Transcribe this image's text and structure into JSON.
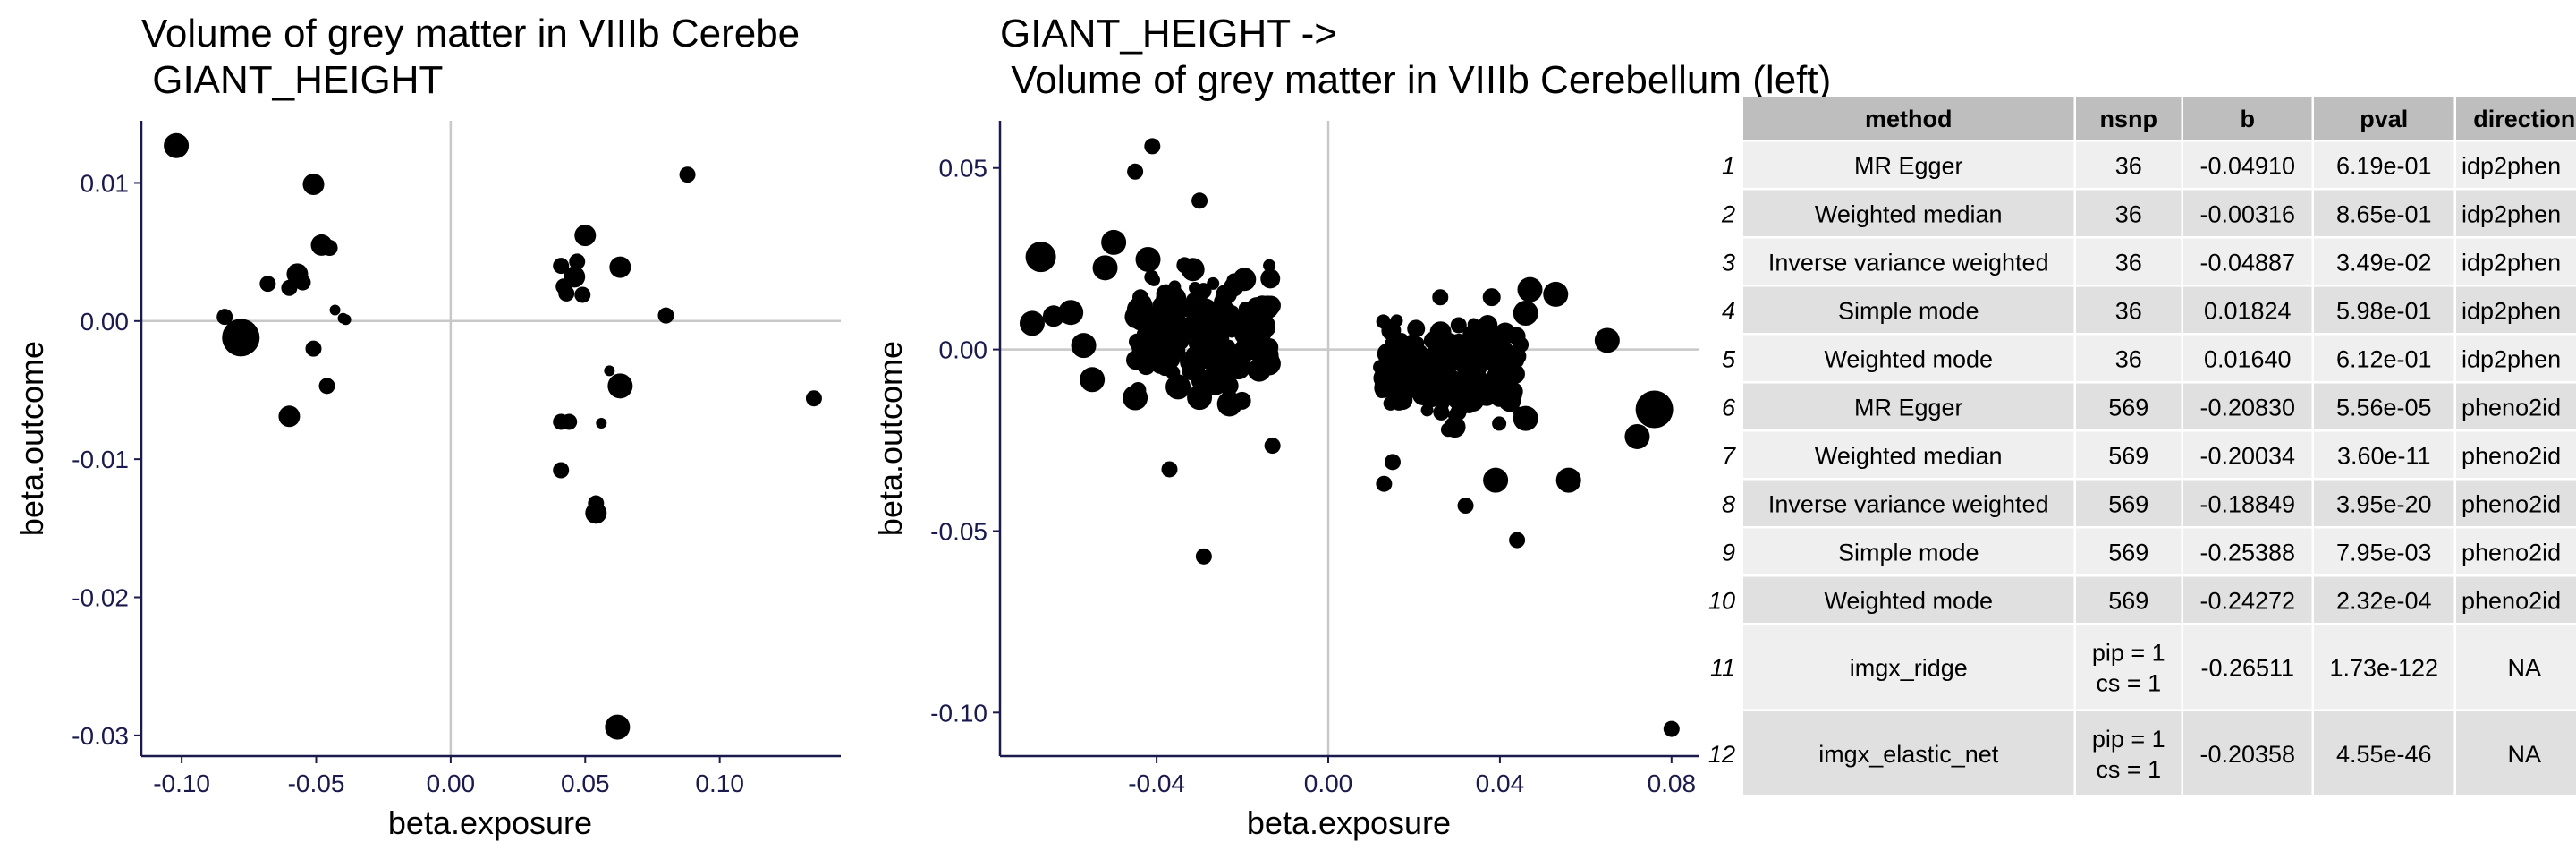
{
  "chart_data": [
    {
      "type": "scatter",
      "title": "Volume of grey matter in VIIIb Cerebe",
      "subtitle": " GIANT_HEIGHT",
      "xlabel": "beta.exposure",
      "ylabel": "beta.outcome",
      "xlim": [
        -0.115,
        0.145
      ],
      "ylim": [
        -0.0315,
        0.0145
      ],
      "xticks": [
        "-0.10",
        "-0.05",
        "0.00",
        "0.05",
        "0.10"
      ],
      "yticks": [
        "0.01",
        "0.00",
        "-0.01",
        "-0.02",
        "-0.03"
      ],
      "reference_lines": {
        "x": 0,
        "y": 0
      },
      "points": [
        {
          "x": -0.102,
          "y": 0.0127,
          "w": 3
        },
        {
          "x": -0.084,
          "y": 0.0003,
          "w": 1
        },
        {
          "x": -0.078,
          "y": -0.0012,
          "w": 5
        },
        {
          "x": -0.068,
          "y": 0.0027,
          "w": 1
        },
        {
          "x": -0.06,
          "y": 0.0024,
          "w": 1
        },
        {
          "x": -0.06,
          "y": -0.0069,
          "w": 2
        },
        {
          "x": -0.057,
          "y": 0.0034,
          "w": 2
        },
        {
          "x": -0.055,
          "y": 0.0028,
          "w": 1
        },
        {
          "x": -0.051,
          "y": 0.0099,
          "w": 2
        },
        {
          "x": -0.051,
          "y": -0.002,
          "w": 1
        },
        {
          "x": -0.048,
          "y": 0.0055,
          "w": 2
        },
        {
          "x": -0.045,
          "y": 0.0053,
          "w": 1
        },
        {
          "x": -0.046,
          "y": -0.0047,
          "w": 1
        },
        {
          "x": -0.043,
          "y": 0.0008,
          "w": 0
        },
        {
          "x": -0.04,
          "y": 0.0002,
          "w": 0
        },
        {
          "x": 0.041,
          "y": 0.004,
          "w": 1
        },
        {
          "x": 0.042,
          "y": 0.0025,
          "w": 1
        },
        {
          "x": 0.043,
          "y": 0.002,
          "w": 1
        },
        {
          "x": 0.046,
          "y": 0.0032,
          "w": 2
        },
        {
          "x": 0.047,
          "y": 0.0043,
          "w": 1
        },
        {
          "x": 0.049,
          "y": 0.0019,
          "w": 1
        },
        {
          "x": 0.05,
          "y": 0.0062,
          "w": 2
        },
        {
          "x": 0.041,
          "y": -0.0073,
          "w": 1
        },
        {
          "x": 0.044,
          "y": -0.0073,
          "w": 1
        },
        {
          "x": 0.041,
          "y": -0.0108,
          "w": 1
        },
        {
          "x": 0.054,
          "y": -0.0132,
          "w": 1
        },
        {
          "x": 0.054,
          "y": -0.0139,
          "w": 2
        },
        {
          "x": 0.056,
          "y": -0.0074,
          "w": 0
        },
        {
          "x": 0.059,
          "y": -0.0036,
          "w": 0
        },
        {
          "x": 0.063,
          "y": 0.0039,
          "w": 2
        },
        {
          "x": 0.063,
          "y": -0.0047,
          "w": 3
        },
        {
          "x": 0.062,
          "y": -0.0294,
          "w": 3
        },
        {
          "x": 0.08,
          "y": 0.0004,
          "w": 1
        },
        {
          "x": 0.088,
          "y": 0.0106,
          "w": 1
        },
        {
          "x": 0.135,
          "y": -0.0056,
          "w": 1
        },
        {
          "x": -0.039,
          "y": 0.0001,
          "w": 0
        }
      ]
    },
    {
      "type": "scatter",
      "title": "GIANT_HEIGHT ->",
      "subtitle": " Volume of grey matter in VIIIb Cerebellum (left)",
      "xlabel": "beta.exposure",
      "ylabel": "beta.outcome",
      "xlim": [
        -0.0765,
        0.0865
      ],
      "ylim": [
        -0.112,
        0.063
      ],
      "xticks": [
        "-0.04",
        "0.00",
        "0.04",
        "0.08"
      ],
      "yticks": [
        "0.05",
        "0.00",
        "-0.05",
        "-0.10"
      ],
      "reference_lines": {
        "x": 0,
        "y": 0
      },
      "points_note": "569 SNPs; large/outlier points listed, remainder clustered at |beta.exposure| 0.012-0.045",
      "points": [
        {
          "x": -0.067,
          "y": 0.0255,
          "w": 4
        },
        {
          "x": -0.069,
          "y": 0.0072,
          "w": 3
        },
        {
          "x": -0.064,
          "y": 0.0092,
          "w": 2
        },
        {
          "x": -0.06,
          "y": 0.0102,
          "w": 3
        },
        {
          "x": -0.057,
          "y": 0.0011,
          "w": 3
        },
        {
          "x": -0.055,
          "y": -0.0083,
          "w": 3
        },
        {
          "x": -0.052,
          "y": 0.0225,
          "w": 3
        },
        {
          "x": -0.05,
          "y": 0.0295,
          "w": 3
        },
        {
          "x": -0.045,
          "y": -0.0133,
          "w": 3
        },
        {
          "x": -0.044,
          "y": 0.011,
          "w": 3
        },
        {
          "x": -0.042,
          "y": 0.0248,
          "w": 3
        },
        {
          "x": -0.039,
          "y": 0.0055,
          "w": 3
        },
        {
          "x": -0.036,
          "y": 0.014,
          "w": 3
        },
        {
          "x": -0.035,
          "y": -0.0103,
          "w": 3
        },
        {
          "x": -0.03,
          "y": -0.0132,
          "w": 3
        },
        {
          "x": -0.029,
          "y": 0.01,
          "w": 4
        },
        {
          "x": -0.026,
          "y": 0.003,
          "w": 3
        },
        {
          "x": -0.023,
          "y": -0.015,
          "w": 3
        },
        {
          "x": -0.019,
          "y": 0.008,
          "w": 3
        },
        {
          "x": -0.045,
          "y": 0.049,
          "w": 1
        },
        {
          "x": -0.041,
          "y": 0.056,
          "w": 1
        },
        {
          "x": -0.03,
          "y": 0.041,
          "w": 1
        },
        {
          "x": -0.029,
          "y": -0.057,
          "w": 1
        },
        {
          "x": -0.037,
          "y": -0.033,
          "w": 1
        },
        {
          "x": -0.013,
          "y": -0.0265,
          "w": 1
        },
        {
          "x": 0.013,
          "y": -0.037,
          "w": 1
        },
        {
          "x": 0.015,
          "y": -0.031,
          "w": 1
        },
        {
          "x": 0.032,
          "y": -0.043,
          "w": 1
        },
        {
          "x": 0.044,
          "y": -0.0525,
          "w": 1
        },
        {
          "x": 0.046,
          "y": 0.01,
          "w": 3
        },
        {
          "x": 0.047,
          "y": 0.0165,
          "w": 3
        },
        {
          "x": 0.053,
          "y": 0.0152,
          "w": 3
        },
        {
          "x": 0.046,
          "y": -0.019,
          "w": 3
        },
        {
          "x": 0.039,
          "y": -0.036,
          "w": 3
        },
        {
          "x": 0.056,
          "y": -0.036,
          "w": 3
        },
        {
          "x": 0.065,
          "y": 0.0025,
          "w": 3
        },
        {
          "x": 0.072,
          "y": -0.024,
          "w": 3
        },
        {
          "x": 0.076,
          "y": -0.0165,
          "w": 5
        },
        {
          "x": 0.08,
          "y": -0.1045,
          "w": 1
        }
      ]
    }
  ],
  "results_table": {
    "headers": [
      "method",
      "nsnp",
      "b",
      "pval",
      "direction"
    ],
    "rows": [
      {
        "idx": "1",
        "method": "MR Egger",
        "nsnp": "36",
        "b": "-0.04910",
        "pval": "6.19e-01",
        "direction": "idp2phen"
      },
      {
        "idx": "2",
        "method": "Weighted median",
        "nsnp": "36",
        "b": "-0.00316",
        "pval": "8.65e-01",
        "direction": "idp2phen"
      },
      {
        "idx": "3",
        "method": "Inverse variance weighted",
        "nsnp": "36",
        "b": "-0.04887",
        "pval": "3.49e-02",
        "direction": "idp2phen"
      },
      {
        "idx": "4",
        "method": "Simple mode",
        "nsnp": "36",
        "b": "0.01824",
        "pval": "5.98e-01",
        "direction": "idp2phen"
      },
      {
        "idx": "5",
        "method": "Weighted mode",
        "nsnp": "36",
        "b": "0.01640",
        "pval": "6.12e-01",
        "direction": "idp2phen"
      },
      {
        "idx": "6",
        "method": "MR Egger",
        "nsnp": "569",
        "b": "-0.20830",
        "pval": "5.56e-05",
        "direction": "pheno2id"
      },
      {
        "idx": "7",
        "method": "Weighted median",
        "nsnp": "569",
        "b": "-0.20034",
        "pval": "3.60e-11",
        "direction": "pheno2id"
      },
      {
        "idx": "8",
        "method": "Inverse variance weighted",
        "nsnp": "569",
        "b": "-0.18849",
        "pval": "3.95e-20",
        "direction": "pheno2id"
      },
      {
        "idx": "9",
        "method": "Simple mode",
        "nsnp": "569",
        "b": "-0.25388",
        "pval": "7.95e-03",
        "direction": "pheno2id"
      },
      {
        "idx": "10",
        "method": "Weighted mode",
        "nsnp": "569",
        "b": "-0.24272",
        "pval": "2.32e-04",
        "direction": "pheno2id"
      },
      {
        "idx": "11",
        "method": "imgx_ridge",
        "nsnp": "pip = 1\ncs = 1",
        "b": "-0.26511",
        "pval": "1.73e-122",
        "direction": "NA"
      },
      {
        "idx": "12",
        "method": "imgx_elastic_net",
        "nsnp": "pip = 1\ncs = 1",
        "b": "-0.20358",
        "pval": "4.55e-46",
        "direction": "NA"
      }
    ],
    "colors": {
      "header": "#bebebe",
      "row_light": "#efefef",
      "row_dark": "#e0e0e0"
    }
  }
}
